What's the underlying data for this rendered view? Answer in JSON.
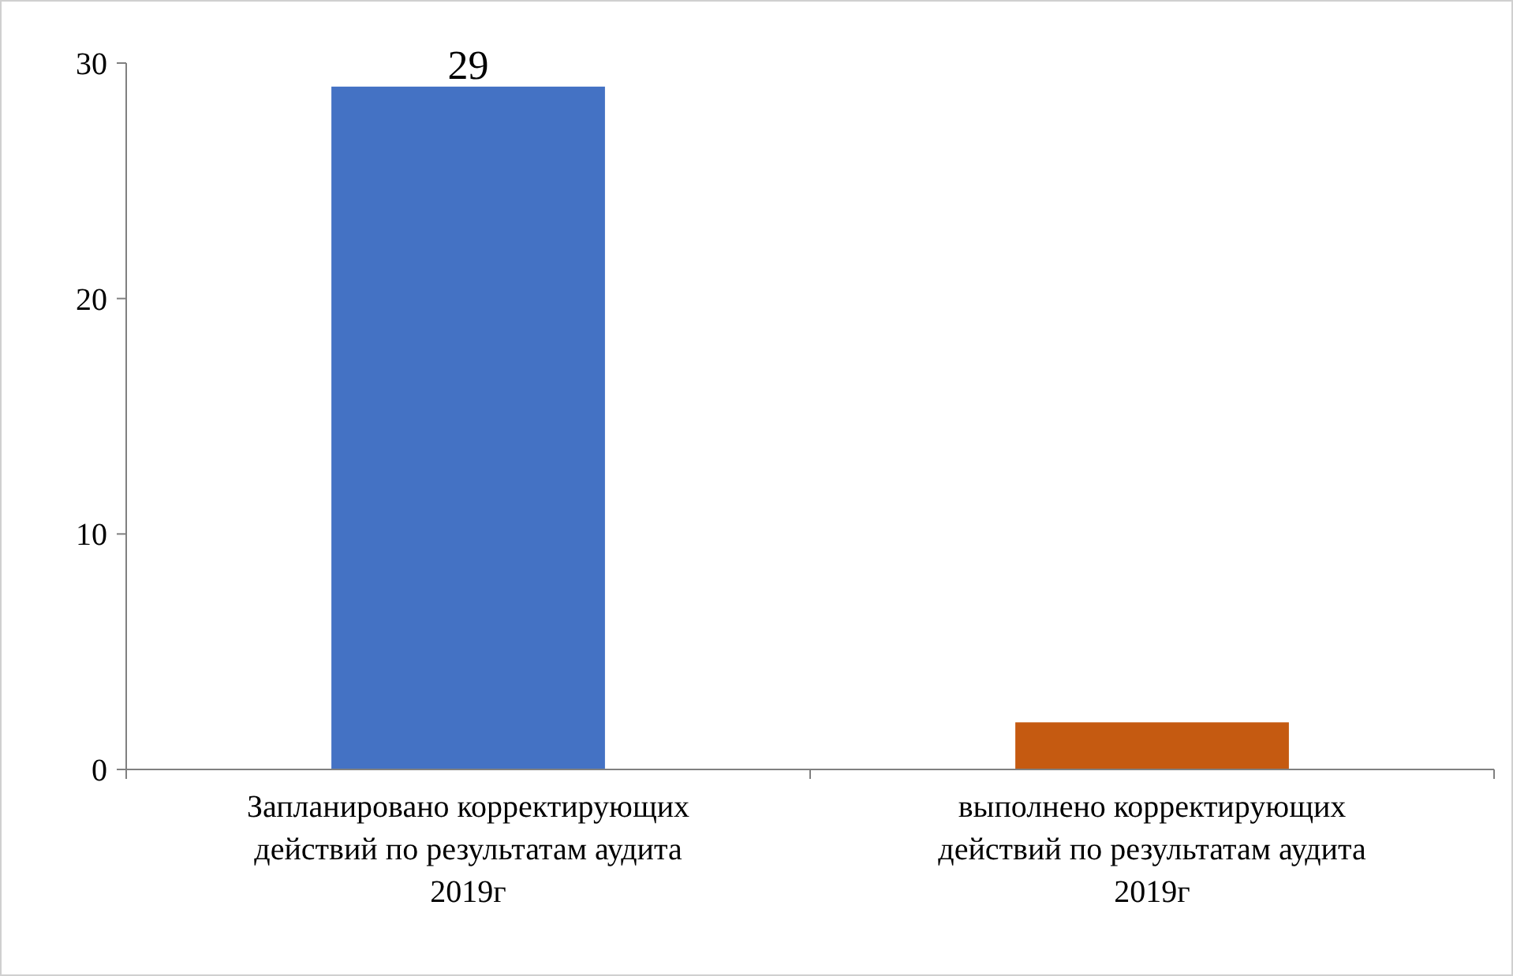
{
  "chart_data": {
    "type": "bar",
    "categories": [
      "Запланировано корректирующих действий по результатам аудита 2019г",
      "выполнено корректирующих действий по результатам аудита 2019г"
    ],
    "values": [
      29,
      2
    ],
    "colors": [
      "#4472c4",
      "#c55a11"
    ],
    "value_labels": [
      "29",
      null
    ],
    "ylim": [
      0,
      30
    ],
    "yticks": [
      0,
      10,
      20,
      30
    ],
    "grid": false
  }
}
